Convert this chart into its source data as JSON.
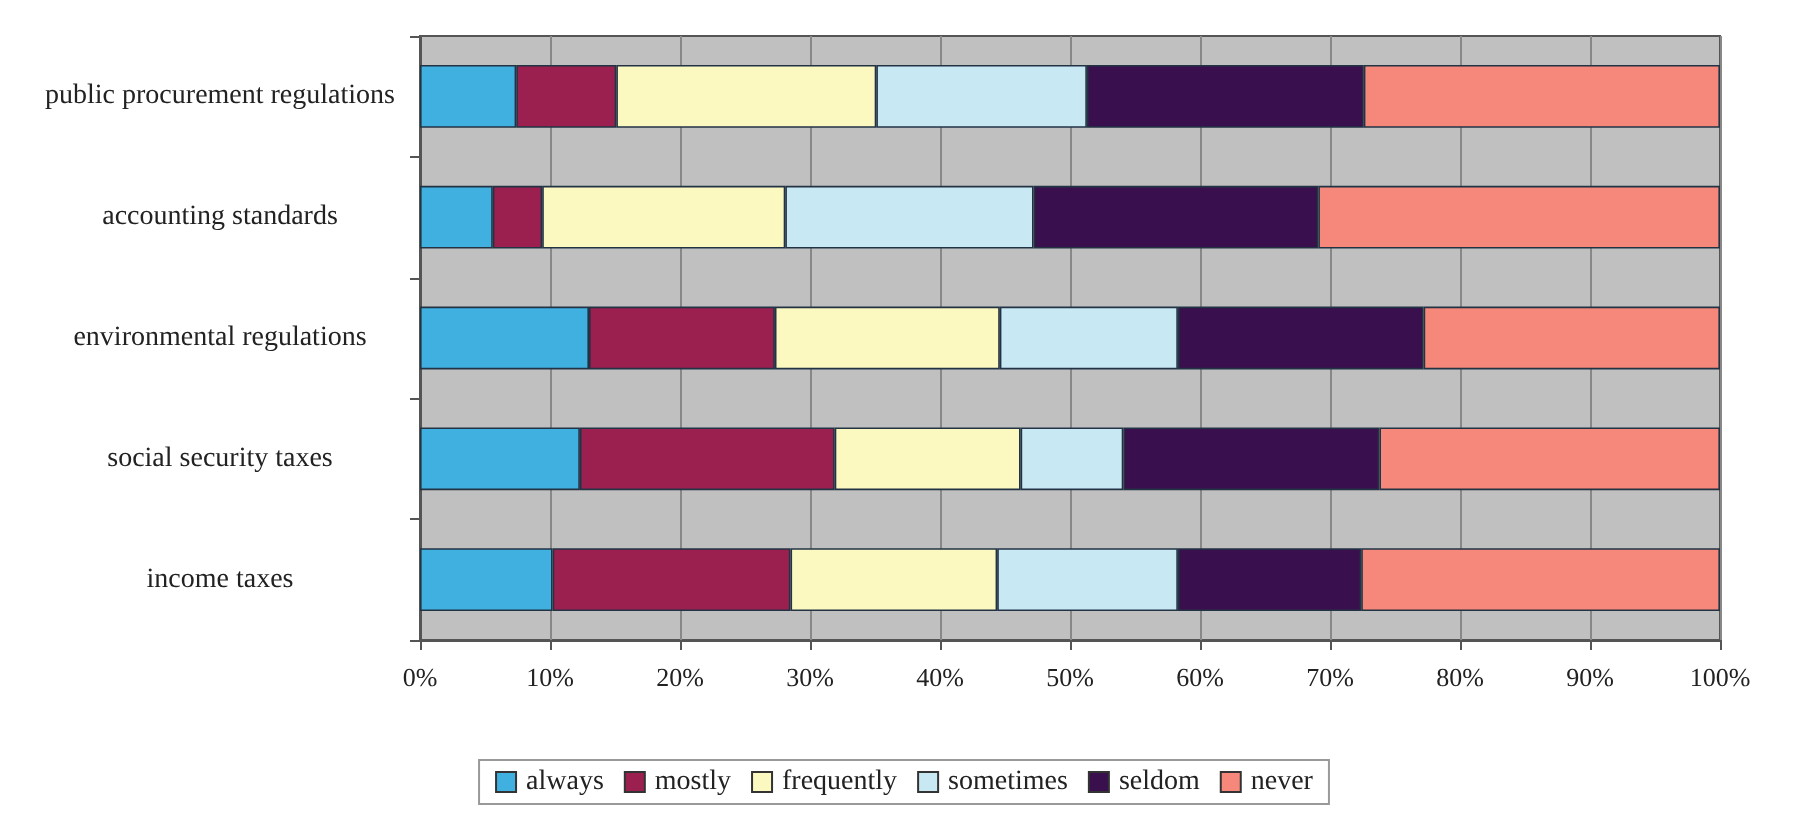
{
  "chart_data": {
    "type": "bar",
    "orientation": "horizontal",
    "stacked": true,
    "categories": [
      "public procurement regulations",
      "accounting standards",
      "environmental regulations",
      "social security taxes",
      "income taxes"
    ],
    "series": [
      {
        "name": "always",
        "color": "#3fb0e0",
        "values": [
          7.4,
          5.6,
          13.0,
          12.3,
          10.2
        ]
      },
      {
        "name": "mostly",
        "color": "#9b2050",
        "values": [
          7.7,
          3.8,
          14.3,
          19.6,
          18.3
        ]
      },
      {
        "name": "frequently",
        "color": "#fbf8c0",
        "values": [
          20.0,
          18.7,
          17.3,
          14.3,
          15.9
        ]
      },
      {
        "name": "sometimes",
        "color": "#c8e8f4",
        "values": [
          16.2,
          19.1,
          13.7,
          7.9,
          13.9
        ]
      },
      {
        "name": "seldom",
        "color": "#3a0f4e",
        "values": [
          21.3,
          21.9,
          18.9,
          19.7,
          14.1
        ]
      },
      {
        "name": "never",
        "color": "#f5887a",
        "values": [
          27.4,
          30.9,
          22.8,
          26.2,
          27.6
        ]
      }
    ],
    "xlim": [
      0,
      100
    ],
    "xticks": [
      {
        "value": 0,
        "label": "0%"
      },
      {
        "value": 10,
        "label": "10%"
      },
      {
        "value": 20,
        "label": "20%"
      },
      {
        "value": 30,
        "label": "30%"
      },
      {
        "value": 40,
        "label": "40%"
      },
      {
        "value": 50,
        "label": "50%"
      },
      {
        "value": 60,
        "label": "60%"
      },
      {
        "value": 70,
        "label": "70%"
      },
      {
        "value": 80,
        "label": "80%"
      },
      {
        "value": 90,
        "label": "90%"
      },
      {
        "value": 100,
        "label": "100%"
      }
    ],
    "grid": "x",
    "legend": "bottom"
  }
}
